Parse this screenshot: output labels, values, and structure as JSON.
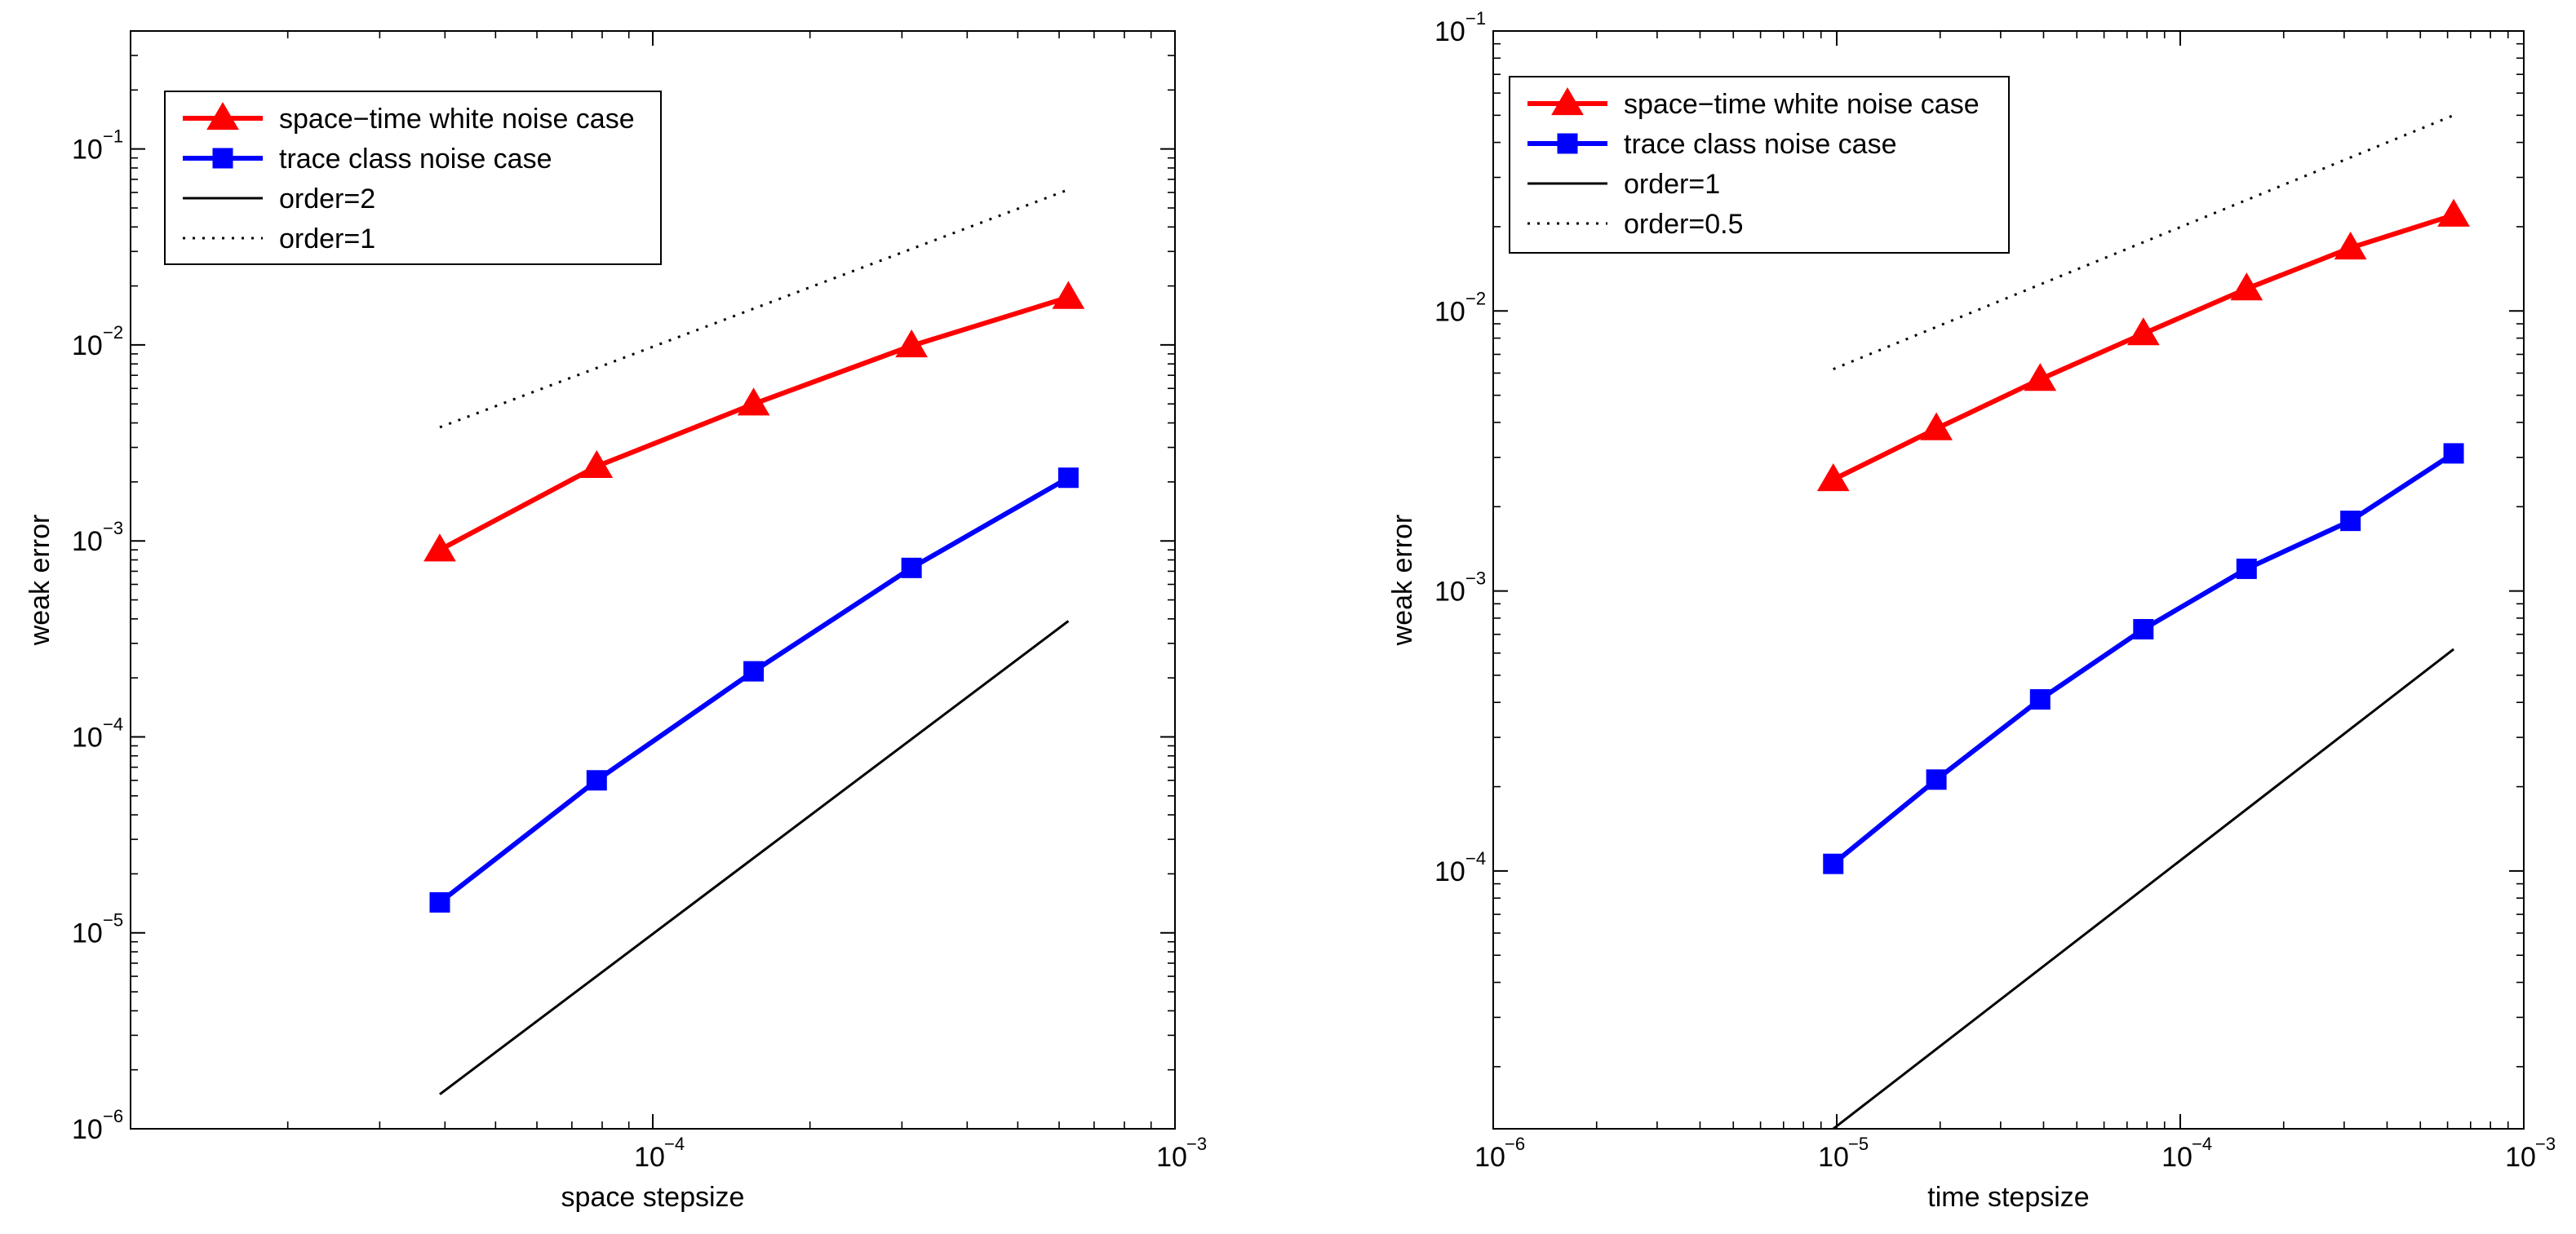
{
  "chart_data": [
    {
      "type": "line",
      "xscale": "log",
      "yscale": "log",
      "xlabel": "space stepsize",
      "ylabel": "weak error",
      "xlim": [
        1e-05,
        0.001
      ],
      "ylim": [
        1e-06,
        0.4
      ],
      "x_ticks": [
        {
          "base": "10",
          "exp": "−4",
          "value": 0.0001
        },
        {
          "base": "10",
          "exp": "−3",
          "value": 0.001
        }
      ],
      "y_ticks": [
        {
          "base": "10",
          "exp": "−6",
          "value": 1e-06
        },
        {
          "base": "10",
          "exp": "−5",
          "value": 1e-05
        },
        {
          "base": "10",
          "exp": "−4",
          "value": 0.0001
        },
        {
          "base": "10",
          "exp": "−3",
          "value": 0.001
        },
        {
          "base": "10",
          "exp": "−2",
          "value": 0.01
        },
        {
          "base": "10",
          "exp": "−1",
          "value": 0.1
        }
      ],
      "legend_position": "top-left",
      "series": [
        {
          "name": "space−time white noise case",
          "color": "#ff0000",
          "style": "solid",
          "marker": "triangle",
          "x": [
            3.91e-05,
            7.81e-05,
            0.000156,
            0.000313,
            0.000625
          ],
          "y": [
            0.0009,
            0.0024,
            0.005,
            0.0099,
            0.0175
          ]
        },
        {
          "name": "trace class noise case",
          "color": "#0000ff",
          "style": "solid",
          "marker": "square",
          "x": [
            3.91e-05,
            7.81e-05,
            0.000156,
            0.000313,
            0.000625
          ],
          "y": [
            1.43e-05,
            6e-05,
            0.000216,
            0.000728,
            0.0021
          ]
        },
        {
          "name": "order=2",
          "color": "#000000",
          "style": "solid",
          "marker": "none",
          "x": [
            3.91e-05,
            0.000625
          ],
          "y": [
            1.5e-06,
            0.00039
          ]
        },
        {
          "name": "order=1",
          "color": "#000000",
          "style": "dotted",
          "marker": "none",
          "x": [
            3.91e-05,
            0.000625
          ],
          "y": [
            0.0038,
            0.062
          ]
        }
      ]
    },
    {
      "type": "line",
      "xscale": "log",
      "yscale": "log",
      "xlabel": "time stepsize",
      "ylabel": "weak error",
      "xlim": [
        1e-06,
        0.001
      ],
      "ylim": [
        1.2e-05,
        0.1
      ],
      "x_ticks": [
        {
          "base": "10",
          "exp": "−6",
          "value": 1e-06
        },
        {
          "base": "10",
          "exp": "−5",
          "value": 1e-05
        },
        {
          "base": "10",
          "exp": "−4",
          "value": 0.0001
        },
        {
          "base": "10",
          "exp": "−3",
          "value": 0.001
        }
      ],
      "y_ticks": [
        {
          "base": "10",
          "exp": "−4",
          "value": 0.0001
        },
        {
          "base": "10",
          "exp": "−3",
          "value": 0.001
        },
        {
          "base": "10",
          "exp": "−2",
          "value": 0.01
        },
        {
          "base": "10",
          "exp": "−1",
          "value": 0.1
        }
      ],
      "legend_position": "top-left",
      "series": [
        {
          "name": "space−time white noise case",
          "color": "#ff0000",
          "style": "solid",
          "marker": "triangle",
          "x": [
            9.77e-06,
            1.95e-05,
            3.91e-05,
            7.81e-05,
            0.000156,
            0.000313,
            0.000625
          ],
          "y": [
            0.0025,
            0.0038,
            0.0057,
            0.0083,
            0.012,
            0.0168,
            0.022
          ]
        },
        {
          "name": "trace class noise case",
          "color": "#0000ff",
          "style": "solid",
          "marker": "square",
          "x": [
            9.77e-06,
            1.95e-05,
            3.91e-05,
            7.81e-05,
            0.000156,
            0.000313,
            0.000625
          ],
          "y": [
            0.000106,
            0.000212,
            0.00041,
            0.00073,
            0.0012,
            0.00178,
            0.0031
          ]
        },
        {
          "name": "order=1",
          "color": "#000000",
          "style": "solid",
          "marker": "none",
          "x": [
            9.77e-06,
            0.000625
          ],
          "y": [
            1.2e-05,
            0.00062
          ]
        },
        {
          "name": "order=0.5",
          "color": "#000000",
          "style": "dotted",
          "marker": "none",
          "x": [
            9.77e-06,
            0.000625
          ],
          "y": [
            0.0062,
            0.05
          ]
        }
      ]
    }
  ]
}
